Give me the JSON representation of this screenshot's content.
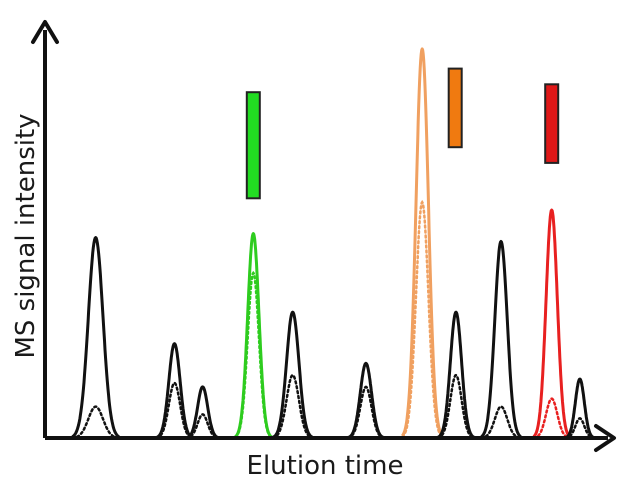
{
  "chart_data": {
    "type": "line",
    "title": "",
    "xlabel": "Elution time",
    "ylabel": "MS signal intensity",
    "grid": false,
    "legend": "none",
    "peaks": [
      {
        "center": 0.09,
        "height": 0.51,
        "width": 0.013,
        "dotted": 0.08,
        "color": "#111111"
      },
      {
        "center": 0.23,
        "height": 0.24,
        "width": 0.01,
        "dotted": 0.14,
        "color": "#111111"
      },
      {
        "center": 0.28,
        "height": 0.13,
        "width": 0.009,
        "dotted": 0.06,
        "color": "#111111"
      },
      {
        "center": 0.37,
        "height": 0.52,
        "width": 0.01,
        "dotted": 0.42,
        "color": "#2ecc1f",
        "tag": true
      },
      {
        "center": 0.44,
        "height": 0.32,
        "width": 0.011,
        "dotted": 0.16,
        "color": "#111111"
      },
      {
        "center": 0.57,
        "height": 0.19,
        "width": 0.01,
        "dotted": 0.13,
        "color": "#111111"
      },
      {
        "center": 0.67,
        "height": 0.99,
        "width": 0.011,
        "dotted": 0.6,
        "color": "#f0a060",
        "tag": true
      },
      {
        "center": 0.73,
        "height": 0.32,
        "width": 0.01,
        "dotted": 0.16,
        "color": "#111111"
      },
      {
        "center": 0.81,
        "height": 0.5,
        "width": 0.011,
        "dotted": 0.08,
        "color": "#111111"
      },
      {
        "center": 0.9,
        "height": 0.58,
        "width": 0.01,
        "dotted": 0.1,
        "color": "#e82020",
        "tag": true
      },
      {
        "center": 0.95,
        "height": 0.15,
        "width": 0.008,
        "dotted": 0.05,
        "color": "#111111"
      }
    ],
    "markers": [
      {
        "peak": 3,
        "color": "#22dd22",
        "level_low": 0.61,
        "level_high": 0.88
      },
      {
        "peak": 6,
        "color": "#f07a10",
        "level_low": 0.74,
        "level_high": 0.94
      },
      {
        "peak": 9,
        "color": "#e01818",
        "level_low": 0.7,
        "level_high": 0.9
      }
    ]
  }
}
